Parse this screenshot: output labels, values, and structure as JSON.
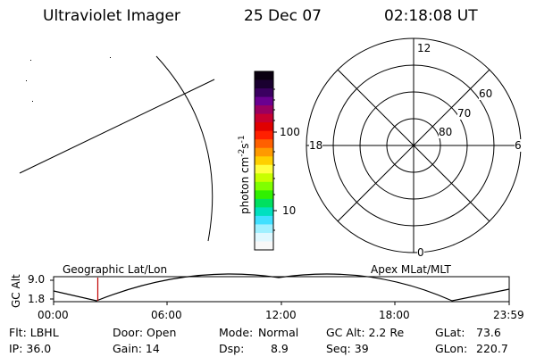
{
  "header": {
    "instrument": "Ultraviolet Imager",
    "date": "25 Dec 07",
    "time": "02:18:08 UT"
  },
  "colorbar": {
    "label": "photon cm",
    "label_sup1": "-2",
    "label_mid": "s",
    "label_sup2": "-1",
    "ticks": [
      "100",
      "10"
    ],
    "colors": [
      "#0a0010",
      "#1a0030",
      "#3a0060",
      "#6a0090",
      "#9a0060",
      "#c80030",
      "#e00000",
      "#ff2000",
      "#ff6000",
      "#ff9a00",
      "#ffd000",
      "#ffff40",
      "#c8ff00",
      "#80ff00",
      "#30f000",
      "#00e060",
      "#00e0c0",
      "#40e0ff",
      "#a0f0ff",
      "#e0f8ff",
      "#f8f8f8"
    ]
  },
  "polar": {
    "mlt_labels": {
      "top": "12",
      "left": "18",
      "right": "6",
      "bottom": "0"
    },
    "lat_labels": [
      "60",
      "70",
      "80"
    ]
  },
  "timeline": {
    "axis_label": "GC Alt",
    "y_ticks": [
      "9.0",
      "1.8"
    ],
    "left_label": "Geographic Lat/Lon",
    "right_label": "Apex MLat/MLT",
    "x_ticks": [
      "00:00",
      "06:00",
      "12:00",
      "18:00",
      "23:59"
    ],
    "current_time_fraction": 0.097
  },
  "info": {
    "flt": "Flt: LBHL",
    "ip": "IP: 36.0",
    "door": "Door: Open",
    "gain": "Gain: 14",
    "mode_label": "Mode:",
    "mode_value": "Normal",
    "dsp_label": "Dsp:",
    "dsp_value": "8.9",
    "gcalt": "GC Alt: 2.2 Re",
    "seq": "Seq: 39",
    "glat_label": "GLat:",
    "glat_value": "73.6",
    "glon_label": "GLon:",
    "glon_value": "220.7"
  }
}
